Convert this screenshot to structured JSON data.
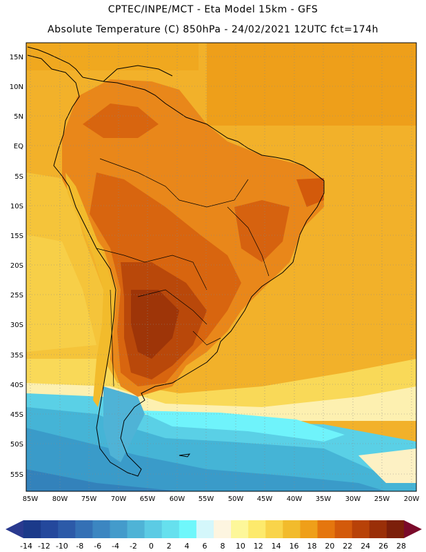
{
  "header": {
    "line1": "CPTEC/INPE/MCT -  Eta Model 15km - GFS",
    "line2": "Absolute Temperature (C) 850hPa - 24/02/2021 12UTC fct=174h"
  },
  "map": {
    "variable": "Absolute Temperature (C) 850hPa",
    "latitude_labels": [
      "15N",
      "10N",
      "5N",
      "EQ",
      "5S",
      "10S",
      "15S",
      "20S",
      "25S",
      "30S",
      "35S",
      "40S",
      "45S",
      "50S",
      "55S"
    ],
    "longitude_labels": [
      "85W",
      "80W",
      "75W",
      "70W",
      "65W",
      "60W",
      "55W",
      "50W",
      "45W",
      "40W",
      "35W",
      "30W",
      "25W",
      "20W"
    ]
  },
  "colorbar": {
    "labels": [
      "-14",
      "-12",
      "-10",
      "-8",
      "-6",
      "-4",
      "-2",
      "0",
      "2",
      "4",
      "6",
      "8",
      "10",
      "12",
      "14",
      "16",
      "18",
      "20",
      "22",
      "24",
      "26",
      "28"
    ],
    "colors": [
      "#1b3a8a",
      "#24489c",
      "#2c5aa8",
      "#3470b5",
      "#3c86c1",
      "#449bcb",
      "#4fb3d6",
      "#5ccbe4",
      "#66e0ee",
      "#6ff7fb",
      "#d4f7fb",
      "#fdf5e0",
      "#fdf79a",
      "#fdea6c",
      "#f9d44a",
      "#f2bb2c",
      "#ef9f19",
      "#e5760e",
      "#d35a0b",
      "#b84208",
      "#9a2f08",
      "#7c1f0a"
    ],
    "low_arrow_color": "#2a3a8f",
    "high_arrow_color": "#7a0a2a"
  }
}
